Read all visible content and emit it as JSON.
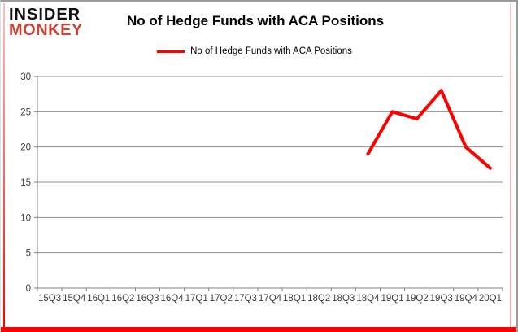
{
  "header": {
    "logo_line1": "INSIDER",
    "logo_line2": "MONKEY",
    "title": "No of Hedge Funds with ACA Positions"
  },
  "legend": {
    "label": "No of Hedge Funds with ACA Positions"
  },
  "colors": {
    "series": "#fe0000",
    "logo_red": "#cb4335",
    "grid": "#909090",
    "axis": "#808080",
    "frame_red": "#fe0000"
  },
  "chart_data": {
    "type": "line",
    "title": "No of Hedge Funds with ACA Positions",
    "categories": [
      "15Q3",
      "15Q4",
      "16Q1",
      "16Q2",
      "16Q3",
      "16Q4",
      "17Q1",
      "17Q2",
      "17Q3",
      "17Q4",
      "18Q1",
      "18Q2",
      "18Q3",
      "18Q4",
      "19Q1",
      "19Q2",
      "19Q3",
      "19Q4",
      "20Q1"
    ],
    "series": [
      {
        "name": "No of Hedge Funds with ACA Positions",
        "values": [
          null,
          null,
          null,
          null,
          null,
          null,
          null,
          null,
          null,
          null,
          null,
          null,
          null,
          19,
          25,
          24,
          28,
          20,
          17
        ]
      }
    ],
    "ylim": [
      0,
      30
    ],
    "ytick_step": 5,
    "yticks": [
      0,
      5,
      10,
      15,
      20,
      25,
      30
    ],
    "grid": true,
    "legend_position": "top",
    "xlabel": "",
    "ylabel": ""
  }
}
